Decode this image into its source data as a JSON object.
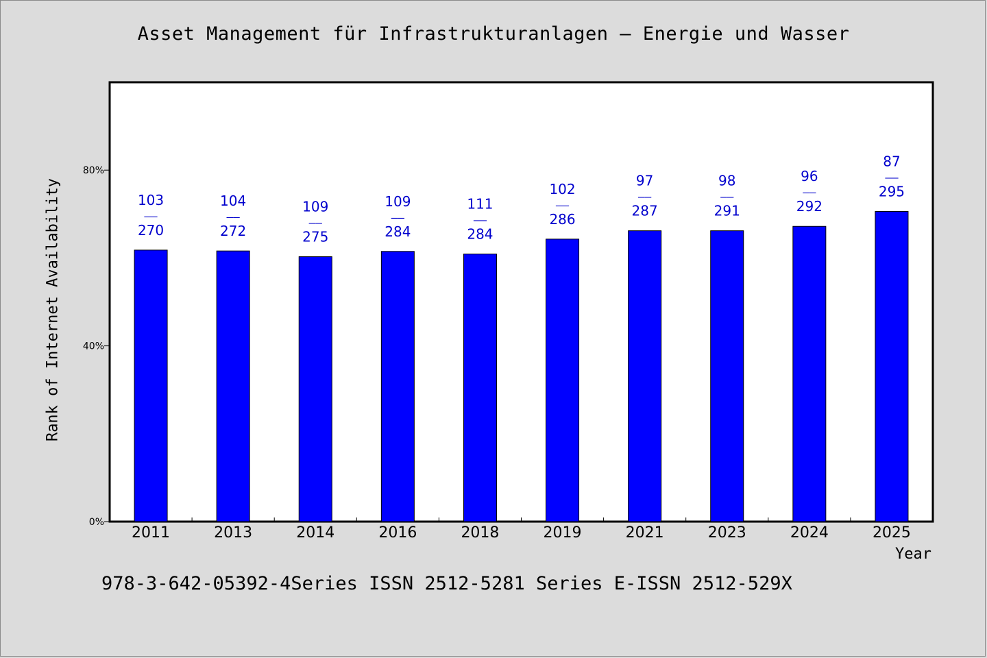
{
  "chart_data": {
    "type": "bar",
    "title": "Asset Management für Infrastrukturanlagen – Energie und Wasser",
    "xlabel": "Year",
    "ylabel": "Rank of Internet Availability",
    "ylim": [
      0,
      100
    ],
    "yticks": [
      {
        "value": 0,
        "label": "0%"
      },
      {
        "value": 40,
        "label": "40%"
      },
      {
        "value": 80,
        "label": "80%"
      }
    ],
    "categories": [
      "2011",
      "2013",
      "2014",
      "2016",
      "2018",
      "2019",
      "2021",
      "2023",
      "2024",
      "2025"
    ],
    "values": [
      61.8,
      61.6,
      60.3,
      61.5,
      60.9,
      64.3,
      66.2,
      66.2,
      67.2,
      70.6
    ],
    "data_labels": [
      {
        "top": "103",
        "sep": "——",
        "bottom": "270"
      },
      {
        "top": "104",
        "sep": "——",
        "bottom": "272"
      },
      {
        "top": "109",
        "sep": "——",
        "bottom": "275"
      },
      {
        "top": "109",
        "sep": "——",
        "bottom": "284"
      },
      {
        "top": "111",
        "sep": "——",
        "bottom": "284"
      },
      {
        "top": "102",
        "sep": "——",
        "bottom": "286"
      },
      {
        "top": "97",
        "sep": "——",
        "bottom": "287"
      },
      {
        "top": "98",
        "sep": "——",
        "bottom": "291"
      },
      {
        "top": "96",
        "sep": "——",
        "bottom": "292"
      },
      {
        "top": "87",
        "sep": "——",
        "bottom": "295"
      }
    ],
    "bar_color": "#0000ff",
    "label_color": "#0000cd",
    "grid": false,
    "legend": "none"
  },
  "footer": "978-3-642-05392-4Series ISSN 2512-5281 Series E-ISSN 2512-529X"
}
